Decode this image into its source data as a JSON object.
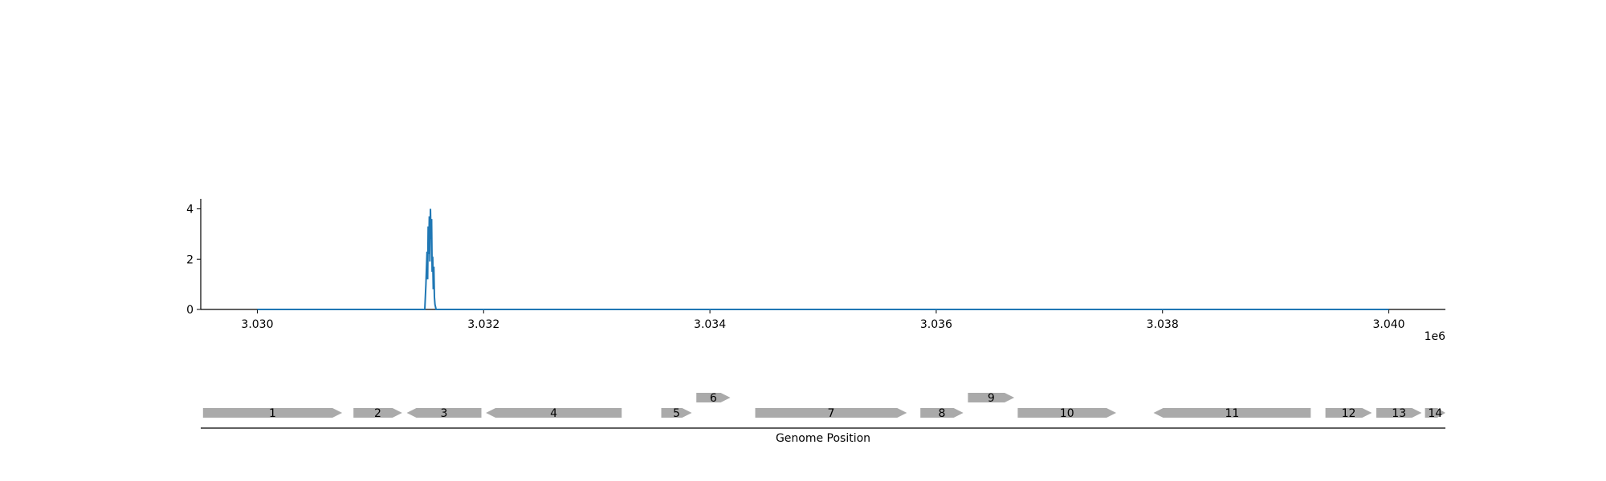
{
  "chart_data": {
    "type": "line",
    "title": "",
    "xlabel": "Genome Position",
    "ylabel": "",
    "x_offset_label": "1e6",
    "xlim": [
      3029500,
      3040500
    ],
    "ylim": [
      0,
      4.4
    ],
    "x_ticks": [
      3030000,
      3032000,
      3034000,
      3036000,
      3038000,
      3040000
    ],
    "x_tick_labels": [
      "3.030",
      "3.032",
      "3.034",
      "3.036",
      "3.038",
      "3.040"
    ],
    "y_ticks": [
      0,
      2,
      4
    ],
    "y_tick_labels": [
      "0",
      "2",
      "4"
    ],
    "grid": false,
    "line_color": "#1f77b4",
    "series": [
      {
        "x": [
          3030000,
          3031480,
          3031490,
          3031500,
          3031505,
          3031510,
          3031515,
          3031520,
          3031525,
          3031530,
          3031535,
          3031540,
          3031545,
          3031550,
          3031555,
          3031560,
          3031565,
          3031570,
          3031580,
          3040000
        ],
        "y": [
          0,
          0,
          1.0,
          2.3,
          1.2,
          3.3,
          2.2,
          3.7,
          1.9,
          4.0,
          2.8,
          3.6,
          1.5,
          2.1,
          0.8,
          1.7,
          0.5,
          0.2,
          0,
          0
        ]
      }
    ]
  },
  "genes": {
    "color": "#aaaaaa",
    "items": [
      {
        "label": "1",
        "start": 3029520,
        "end": 3030750,
        "strand": "+",
        "row": 0
      },
      {
        "label": "2",
        "start": 3030850,
        "end": 3031280,
        "strand": "+",
        "row": 0
      },
      {
        "label": "3",
        "start": 3031320,
        "end": 3031980,
        "strand": "-",
        "row": 0
      },
      {
        "label": "4",
        "start": 3032020,
        "end": 3033220,
        "strand": "-",
        "row": 0
      },
      {
        "label": "5",
        "start": 3033570,
        "end": 3033840,
        "strand": "+",
        "row": 0
      },
      {
        "label": "6",
        "start": 3033880,
        "end": 3034180,
        "strand": "+",
        "row": 1
      },
      {
        "label": "7",
        "start": 3034400,
        "end": 3035740,
        "strand": "+",
        "row": 0
      },
      {
        "label": "8",
        "start": 3035860,
        "end": 3036240,
        "strand": "+",
        "row": 0
      },
      {
        "label": "9",
        "start": 3036280,
        "end": 3036690,
        "strand": "+",
        "row": 1
      },
      {
        "label": "10",
        "start": 3036720,
        "end": 3037590,
        "strand": "+",
        "row": 0
      },
      {
        "label": "11",
        "start": 3037920,
        "end": 3039310,
        "strand": "-",
        "row": 0
      },
      {
        "label": "12",
        "start": 3039440,
        "end": 3039850,
        "strand": "+",
        "row": 0
      },
      {
        "label": "13",
        "start": 3039890,
        "end": 3040290,
        "strand": "+",
        "row": 0
      },
      {
        "label": "14",
        "start": 3040320,
        "end": 3040500,
        "strand": "+",
        "row": 0
      }
    ]
  }
}
